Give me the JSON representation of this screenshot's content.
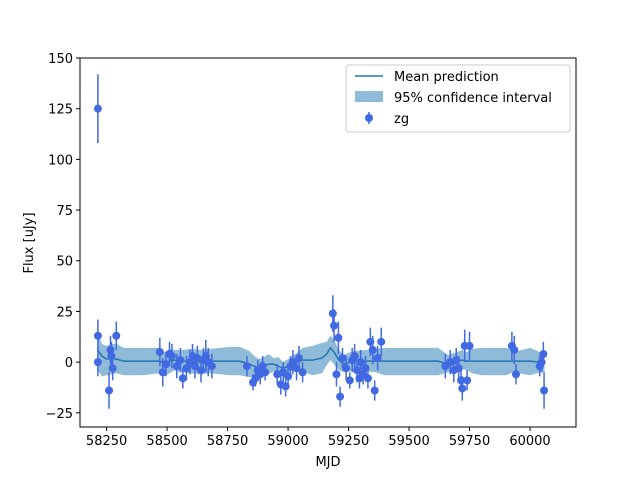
{
  "chart_data": {
    "type": "scatter",
    "title": "",
    "xlabel": "MJD",
    "ylabel": "Flux [uJy]",
    "xlim": [
      58140,
      60190
    ],
    "ylim": [
      -32,
      150
    ],
    "xticks": [
      58250,
      58500,
      58750,
      59000,
      59250,
      59500,
      59750,
      60000
    ],
    "yticks": [
      -25,
      0,
      25,
      50,
      75,
      100,
      125,
      150
    ],
    "grid": false,
    "legend_position": "top-right",
    "colors": {
      "mean": "#1f77b4",
      "band": "#8fbbd9",
      "points": "#4169e1"
    },
    "legend": [
      {
        "label": "Mean prediction",
        "kind": "line"
      },
      {
        "label": "95% confidence interval",
        "kind": "patch"
      },
      {
        "label": "zg",
        "kind": "errorbar"
      }
    ],
    "mean_prediction": {
      "x": [
        58214,
        58230,
        58250,
        58270,
        58290,
        58320,
        58400,
        58470,
        58490,
        58510,
        58530,
        58560,
        58600,
        58640,
        58680,
        58720,
        58760,
        58800,
        58840,
        58860,
        58880,
        58900,
        58920,
        58940,
        58960,
        58980,
        59000,
        59030,
        59060,
        59100,
        59140,
        59160,
        59175,
        59190,
        59210,
        59230,
        59270,
        59320,
        59360,
        59400,
        59450,
        59500,
        59560,
        59620,
        59660,
        59700,
        59720,
        59740,
        59760,
        59800,
        59900,
        59930,
        59950,
        60000,
        60040,
        60060
      ],
      "y": [
        6,
        3,
        1.5,
        2,
        1.5,
        0.5,
        0.5,
        0.5,
        -1,
        0.5,
        1,
        0.5,
        0.5,
        0,
        0.5,
        0.5,
        0.5,
        0.5,
        -1,
        -2,
        -3,
        -2,
        -1,
        -1,
        -2,
        -3,
        -2,
        0.5,
        1,
        1,
        2,
        4,
        7,
        5,
        1,
        -1,
        0.5,
        0.5,
        0.5,
        0.5,
        0.5,
        0.5,
        0.5,
        0.5,
        -1,
        0.5,
        1,
        0.5,
        0.5,
        0.5,
        0.5,
        0.5,
        0.5,
        0.5,
        0,
        0
      ]
    },
    "confidence_interval": {
      "x": [
        58214,
        58230,
        58250,
        58270,
        58290,
        58320,
        58400,
        58470,
        58490,
        58510,
        58530,
        58560,
        58600,
        58640,
        58680,
        58720,
        58760,
        58800,
        58840,
        58860,
        58880,
        58900,
        58920,
        58940,
        58960,
        58980,
        59000,
        59030,
        59060,
        59100,
        59140,
        59160,
        59175,
        59190,
        59210,
        59230,
        59270,
        59320,
        59360,
        59400,
        59450,
        59500,
        59560,
        59620,
        59660,
        59700,
        59720,
        59740,
        59760,
        59800,
        59900,
        59930,
        59950,
        60000,
        60040,
        60060
      ],
      "lower": [
        -4,
        -7,
        -6.5,
        -6,
        -5.5,
        -6.5,
        -6.5,
        -5.5,
        -7,
        -5.5,
        -4,
        -5,
        -5.5,
        -6,
        -5.5,
        -6,
        -6.5,
        -6.5,
        -7.5,
        -7,
        -8,
        -5.5,
        -6,
        -4.5,
        -6.5,
        -5.5,
        -5,
        -4,
        -4.5,
        -6.5,
        -5.5,
        -1.5,
        1,
        -1,
        -4,
        -5,
        -4,
        -4.5,
        -5,
        -6.5,
        -6.5,
        -6.5,
        -6.5,
        -6.5,
        -5,
        -4,
        -3.5,
        -4,
        -5.5,
        -6.5,
        -6.5,
        -5,
        -5.5,
        -6.5,
        -5,
        -5
      ],
      "upper": [
        14,
        9,
        8,
        9,
        9,
        7,
        7,
        7,
        5,
        6.5,
        6,
        6,
        6.5,
        6,
        6.5,
        7,
        7.5,
        7.5,
        5.5,
        3,
        1.5,
        2.5,
        4,
        2,
        2.5,
        0,
        1.5,
        4,
        7,
        8,
        9.5,
        10,
        13,
        11,
        6,
        3.5,
        5.5,
        6,
        6.5,
        7,
        7,
        7,
        7,
        7,
        3.5,
        5,
        6,
        5,
        6.5,
        7,
        7,
        6,
        5.5,
        7,
        5,
        5
      ]
    },
    "series": [
      {
        "name": "zg",
        "points": [
          {
            "x": 58214,
            "y": 125,
            "err": 17
          },
          {
            "x": 58214,
            "y": 13,
            "err": 8
          },
          {
            "x": 58214,
            "y": 0,
            "err": 7
          },
          {
            "x": 58260,
            "y": -14,
            "err": 9
          },
          {
            "x": 58266,
            "y": 6,
            "err": 7
          },
          {
            "x": 58270,
            "y": 3,
            "err": 7
          },
          {
            "x": 58275,
            "y": -3,
            "err": 6
          },
          {
            "x": 58290,
            "y": 13,
            "err": 7
          },
          {
            "x": 58470,
            "y": 5,
            "err": 7
          },
          {
            "x": 58482,
            "y": -5,
            "err": 7
          },
          {
            "x": 58495,
            "y": -1,
            "err": 6
          },
          {
            "x": 58510,
            "y": 4,
            "err": 6
          },
          {
            "x": 58520,
            "y": 3,
            "err": 6
          },
          {
            "x": 58540,
            "y": -2,
            "err": 6
          },
          {
            "x": 58555,
            "y": 1,
            "err": 6
          },
          {
            "x": 58565,
            "y": -8,
            "err": 5
          },
          {
            "x": 58580,
            "y": -3,
            "err": 6
          },
          {
            "x": 58595,
            "y": 0,
            "err": 6
          },
          {
            "x": 58605,
            "y": 3,
            "err": 6
          },
          {
            "x": 58615,
            "y": -2,
            "err": 6
          },
          {
            "x": 58625,
            "y": 2,
            "err": 6
          },
          {
            "x": 58640,
            "y": -4,
            "err": 6
          },
          {
            "x": 58650,
            "y": 1,
            "err": 6
          },
          {
            "x": 58660,
            "y": 3,
            "err": 8
          },
          {
            "x": 58670,
            "y": 0,
            "err": 7
          },
          {
            "x": 58685,
            "y": -2,
            "err": 6
          },
          {
            "x": 58830,
            "y": -2,
            "err": 5
          },
          {
            "x": 58855,
            "y": -10,
            "err": 4
          },
          {
            "x": 58865,
            "y": -8,
            "err": 4
          },
          {
            "x": 58875,
            "y": -4,
            "err": 5
          },
          {
            "x": 58885,
            "y": -6,
            "err": 5
          },
          {
            "x": 58895,
            "y": -2,
            "err": 5
          },
          {
            "x": 58905,
            "y": -5,
            "err": 4
          },
          {
            "x": 58955,
            "y": -6,
            "err": 5
          },
          {
            "x": 58970,
            "y": -11,
            "err": 5
          },
          {
            "x": 58980,
            "y": -5,
            "err": 5
          },
          {
            "x": 58990,
            "y": -12,
            "err": 5
          },
          {
            "x": 59000,
            "y": -7,
            "err": 5
          },
          {
            "x": 59010,
            "y": -2,
            "err": 5
          },
          {
            "x": 59020,
            "y": 0,
            "err": 6
          },
          {
            "x": 59035,
            "y": -3,
            "err": 6
          },
          {
            "x": 59045,
            "y": 2,
            "err": 6
          },
          {
            "x": 59060,
            "y": -5,
            "err": 5
          },
          {
            "x": 59185,
            "y": 24,
            "err": 9
          },
          {
            "x": 59190,
            "y": 18,
            "err": 8
          },
          {
            "x": 59200,
            "y": -6,
            "err": 6
          },
          {
            "x": 59208,
            "y": 12,
            "err": 8
          },
          {
            "x": 59215,
            "y": -17,
            "err": 5
          },
          {
            "x": 59225,
            "y": 2,
            "err": 5
          },
          {
            "x": 59240,
            "y": -3,
            "err": 6
          },
          {
            "x": 59255,
            "y": -9,
            "err": 4
          },
          {
            "x": 59265,
            "y": 1,
            "err": 6
          },
          {
            "x": 59275,
            "y": 3,
            "err": 6
          },
          {
            "x": 59285,
            "y": -4,
            "err": 6
          },
          {
            "x": 59295,
            "y": -8,
            "err": 5
          },
          {
            "x": 59300,
            "y": 0,
            "err": 6
          },
          {
            "x": 59310,
            "y": -6,
            "err": 5
          },
          {
            "x": 59320,
            "y": -3,
            "err": 6
          },
          {
            "x": 59330,
            "y": -8,
            "err": 5
          },
          {
            "x": 59340,
            "y": 10,
            "err": 7
          },
          {
            "x": 59350,
            "y": 6,
            "err": 7
          },
          {
            "x": 59358,
            "y": -14,
            "err": 5
          },
          {
            "x": 59370,
            "y": 2,
            "err": 6
          },
          {
            "x": 59385,
            "y": 10,
            "err": 7
          },
          {
            "x": 59650,
            "y": -2,
            "err": 6
          },
          {
            "x": 59670,
            "y": 0,
            "err": 6
          },
          {
            "x": 59685,
            "y": -4,
            "err": 6
          },
          {
            "x": 59695,
            "y": 1,
            "err": 6
          },
          {
            "x": 59705,
            "y": -3,
            "err": 6
          },
          {
            "x": 59715,
            "y": -9,
            "err": 5
          },
          {
            "x": 59720,
            "y": -13,
            "err": 6
          },
          {
            "x": 59730,
            "y": 8,
            "err": 8
          },
          {
            "x": 59740,
            "y": -9,
            "err": 5
          },
          {
            "x": 59750,
            "y": 8,
            "err": 7
          },
          {
            "x": 59925,
            "y": 8,
            "err": 7
          },
          {
            "x": 59935,
            "y": 6,
            "err": 7
          },
          {
            "x": 59942,
            "y": -6,
            "err": 5
          },
          {
            "x": 60040,
            "y": -2,
            "err": 5
          },
          {
            "x": 60048,
            "y": 0,
            "err": 5
          },
          {
            "x": 60055,
            "y": 4,
            "err": 6
          },
          {
            "x": 60058,
            "y": -14,
            "err": 9
          }
        ]
      }
    ]
  }
}
